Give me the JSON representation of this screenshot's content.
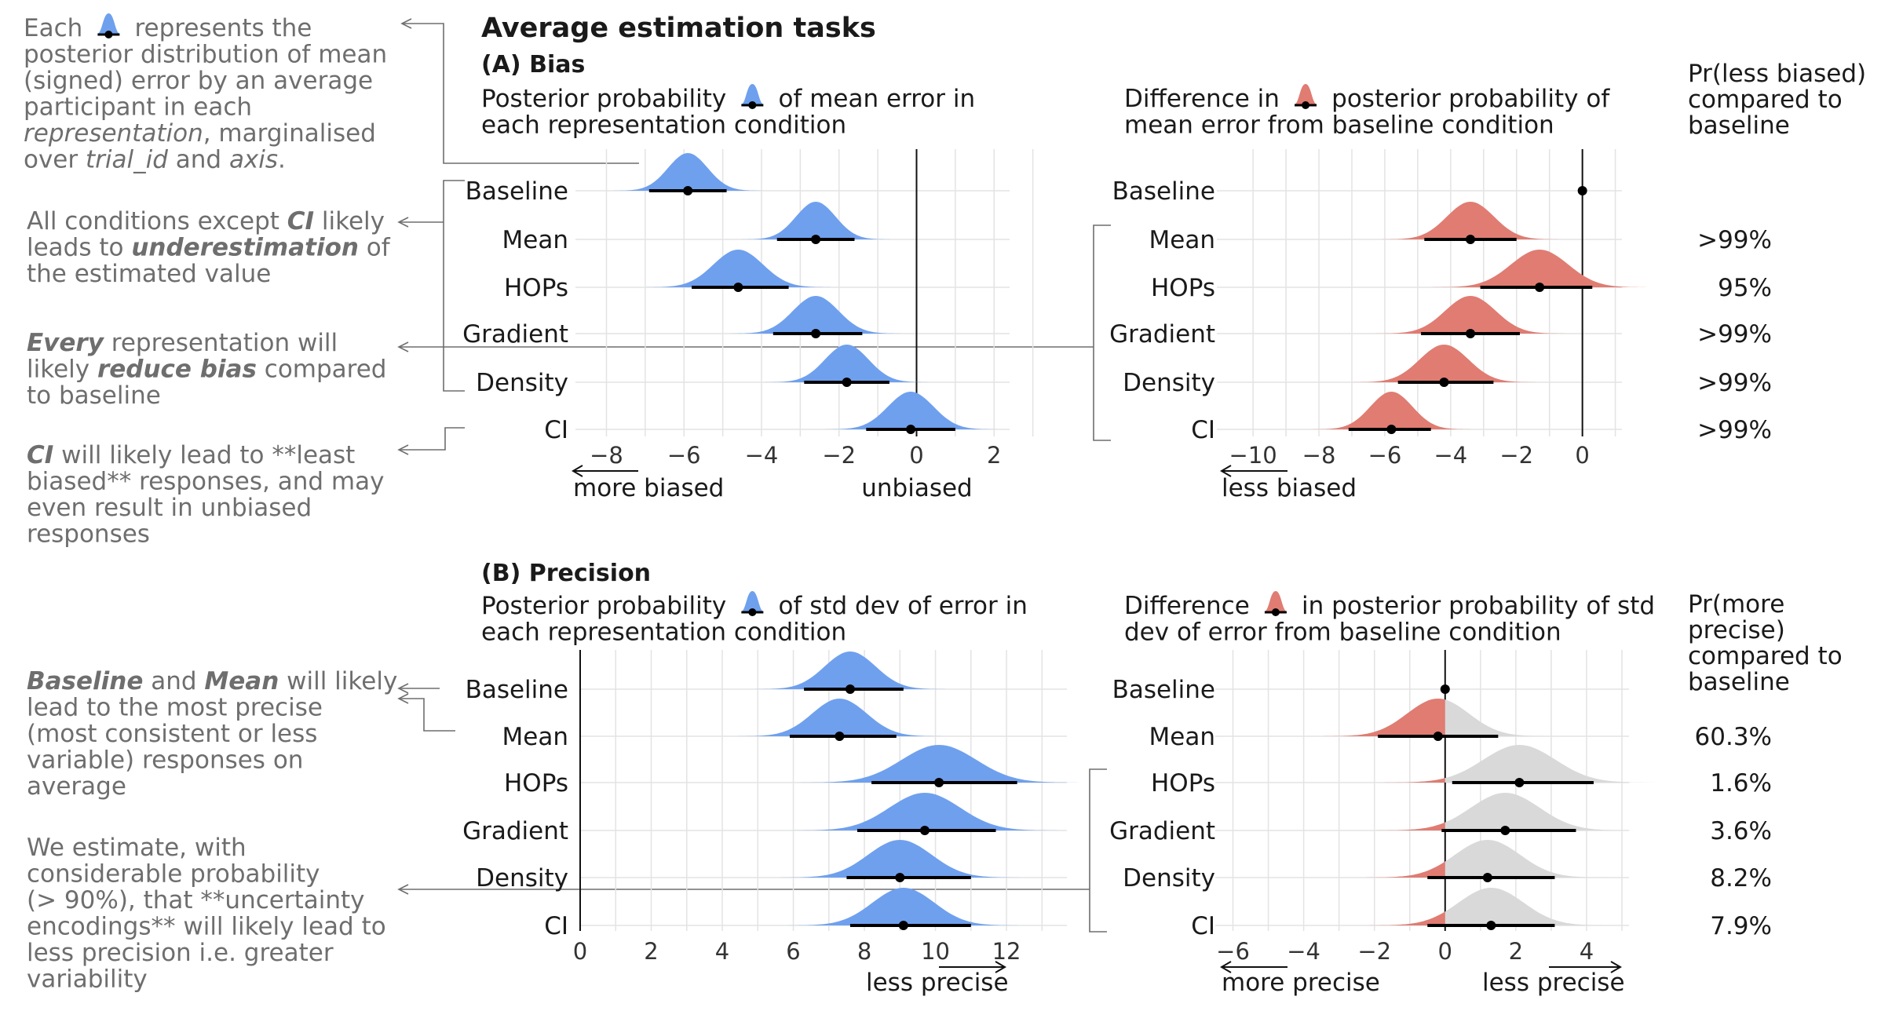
{
  "figure": {
    "title": "Average estimation tasks",
    "colors": {
      "blue": "#6fa0ee",
      "red": "#e07c72",
      "grey": "#d9d9d9",
      "annotation": "#6e6e6e"
    }
  },
  "annotations": [
    {
      "lines": [
        "Each [icon] represents the",
        "posterior distribution of mean",
        "(signed) error by an average",
        "participant in each",
        "*representation*, marginalised",
        "over *trial_id* and *axis*."
      ]
    },
    {
      "lines": [
        "All conditions except **CI** likely",
        "leads to **underestimation** of",
        "the estimated value"
      ]
    },
    {
      "lines": [
        "**Every** representation will",
        "likely **reduce bias** compared",
        "to baseline"
      ]
    },
    {
      "lines": [
        "**CI** will likely lead to **least",
        "biased** responses, and may",
        "even result in unbiased",
        "responses"
      ]
    },
    {
      "lines": [
        "**Baseline** and **Mean** will likely",
        "lead to the most precise",
        "(most consistent or less",
        "variable) responses on",
        "average"
      ]
    },
    {
      "lines": [
        "We estimate, with",
        "considerable probability",
        "(> 90%), that **uncertainty",
        "encodings** will likely lead to",
        "less precision i.e. greater",
        "variability"
      ]
    }
  ],
  "panelA": {
    "title": "(A) Bias",
    "left_caption": [
      "Posterior probability [icon] of mean error in",
      "each representation condition"
    ],
    "right_caption": [
      "Difference in [icon] posterior probability of",
      "mean error from baseline condition"
    ],
    "prob_header": [
      "Pr(less biased)",
      "compared to",
      "baseline"
    ],
    "left_axis": {
      "ticks": [
        "−8",
        "−6",
        "−4",
        "−2",
        "0",
        "2"
      ],
      "tick_values": [
        -8,
        -6,
        -4,
        -2,
        0,
        2
      ],
      "label_left": "more biased",
      "label_mid": "unbiased"
    },
    "right_axis": {
      "ticks": [
        "−10",
        "−8",
        "−6",
        "−4",
        "−2",
        "0"
      ],
      "tick_values": [
        -10,
        -8,
        -6,
        -4,
        -2,
        0
      ],
      "label_left": "less biased"
    }
  },
  "panelB": {
    "title": "(B) Precision",
    "left_caption": [
      "Posterior probability [icon] of std dev of error in",
      "each representation condition"
    ],
    "right_caption": [
      "Difference [icon] in posterior probability of std",
      "dev of error from baseline condition"
    ],
    "prob_header": [
      "Pr(more",
      "precise)",
      "compared to",
      "baseline"
    ],
    "left_axis": {
      "ticks": [
        "0",
        "2",
        "4",
        "6",
        "8",
        "10",
        "12"
      ],
      "tick_values": [
        0,
        2,
        4,
        6,
        8,
        10,
        12
      ],
      "label_right": "less precise"
    },
    "right_axis": {
      "ticks": [
        "−6",
        "−4",
        "−2",
        "0",
        "2",
        "4"
      ],
      "tick_values": [
        -6,
        -4,
        -2,
        0,
        2,
        4
      ],
      "label_left": "more precise",
      "label_right": "less precise"
    }
  },
  "chart_data": [
    {
      "type": "halfeye",
      "title": "(A) Bias",
      "subtitle": "Posterior probability of mean error in each representation condition",
      "categories": [
        "Baseline",
        "Mean",
        "HOPs",
        "Gradient",
        "Density",
        "CI"
      ],
      "median": [
        -5.9,
        -2.6,
        -4.6,
        -2.6,
        -1.8,
        -0.15
      ],
      "interval": [
        [
          -6.9,
          -4.9
        ],
        [
          -3.6,
          -1.6
        ],
        [
          -5.8,
          -3.3
        ],
        [
          -3.7,
          -1.4
        ],
        [
          -2.9,
          -0.7
        ],
        [
          -1.3,
          1.0
        ]
      ],
      "xlim": [
        -8.8,
        2.4
      ],
      "reference_line": 0
    },
    {
      "type": "halfeye",
      "subtitle": "Difference in posterior probability of mean error from baseline condition",
      "categories": [
        "Baseline",
        "Mean",
        "HOPs",
        "Gradient",
        "Density",
        "CI"
      ],
      "median": [
        0,
        -3.4,
        -1.3,
        -3.4,
        -4.2,
        -5.8
      ],
      "interval": [
        [
          0,
          0
        ],
        [
          -4.8,
          -2.0
        ],
        [
          -3.1,
          0.3
        ],
        [
          -4.9,
          -1.9
        ],
        [
          -5.6,
          -2.7
        ],
        [
          -7.1,
          -4.6
        ]
      ],
      "prob_less_biased": [
        "",
        ">99%",
        "95%",
        ">99%",
        ">99%",
        ">99%"
      ],
      "xlim": [
        -11.1,
        1.2
      ],
      "reference_line": 0
    },
    {
      "type": "halfeye",
      "title": "(B) Precision",
      "subtitle": "Posterior probability of std dev of error in each representation condition",
      "categories": [
        "Baseline",
        "Mean",
        "HOPs",
        "Gradient",
        "Density",
        "CI"
      ],
      "median": [
        7.6,
        7.3,
        10.1,
        9.7,
        9.0,
        9.1
      ],
      "interval": [
        [
          6.3,
          9.1
        ],
        [
          5.9,
          8.9
        ],
        [
          8.2,
          12.3
        ],
        [
          7.8,
          11.7
        ],
        [
          7.5,
          11.0
        ],
        [
          7.6,
          11.0
        ]
      ],
      "xlim": [
        0,
        13.7
      ],
      "reference_line": 0
    },
    {
      "type": "halfeye",
      "subtitle": "Difference in posterior probability of std dev of error from baseline condition",
      "categories": [
        "Baseline",
        "Mean",
        "HOPs",
        "Gradient",
        "Density",
        "CI"
      ],
      "median": [
        0,
        -0.2,
        2.1,
        1.7,
        1.2,
        1.3
      ],
      "interval": [
        [
          0,
          0
        ],
        [
          -1.9,
          1.5
        ],
        [
          0.2,
          4.2
        ],
        [
          -0.1,
          3.7
        ],
        [
          -0.5,
          3.1
        ],
        [
          -0.5,
          3.1
        ]
      ],
      "prob_more_precise": [
        "",
        "60.3%",
        "1.6%",
        "3.6%",
        "8.2%",
        "7.9%"
      ],
      "xlim": [
        -6.5,
        5.2
      ],
      "reference_line": 0
    }
  ]
}
